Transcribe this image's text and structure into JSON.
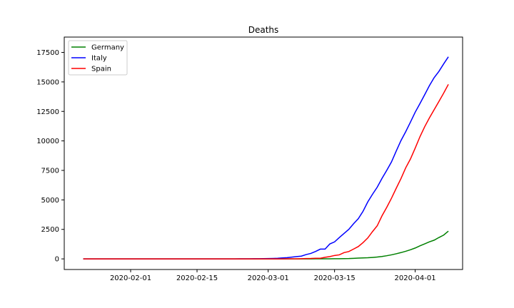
{
  "chart_data": {
    "type": "line",
    "title": "Deaths",
    "xlabel": "",
    "ylabel": "",
    "x_type": "date",
    "x": [
      "2020-01-22",
      "2020-01-23",
      "2020-01-24",
      "2020-01-25",
      "2020-01-26",
      "2020-01-27",
      "2020-01-28",
      "2020-01-29",
      "2020-01-30",
      "2020-01-31",
      "2020-02-01",
      "2020-02-02",
      "2020-02-03",
      "2020-02-04",
      "2020-02-05",
      "2020-02-06",
      "2020-02-07",
      "2020-02-08",
      "2020-02-09",
      "2020-02-10",
      "2020-02-11",
      "2020-02-12",
      "2020-02-13",
      "2020-02-14",
      "2020-02-15",
      "2020-02-16",
      "2020-02-17",
      "2020-02-18",
      "2020-02-19",
      "2020-02-20",
      "2020-02-21",
      "2020-02-22",
      "2020-02-23",
      "2020-02-24",
      "2020-02-25",
      "2020-02-26",
      "2020-02-27",
      "2020-02-28",
      "2020-02-29",
      "2020-03-01",
      "2020-03-02",
      "2020-03-03",
      "2020-03-04",
      "2020-03-05",
      "2020-03-06",
      "2020-03-07",
      "2020-03-08",
      "2020-03-09",
      "2020-03-10",
      "2020-03-11",
      "2020-03-12",
      "2020-03-13",
      "2020-03-14",
      "2020-03-15",
      "2020-03-16",
      "2020-03-17",
      "2020-03-18",
      "2020-03-19",
      "2020-03-20",
      "2020-03-21",
      "2020-03-22",
      "2020-03-23",
      "2020-03-24",
      "2020-03-25",
      "2020-03-26",
      "2020-03-27",
      "2020-03-28",
      "2020-03-29",
      "2020-03-30",
      "2020-03-31",
      "2020-04-01",
      "2020-04-02",
      "2020-04-03",
      "2020-04-04",
      "2020-04-05",
      "2020-04-06",
      "2020-04-07",
      "2020-04-08"
    ],
    "series": [
      {
        "name": "Germany",
        "color": "#008000",
        "values": [
          0,
          0,
          0,
          0,
          0,
          0,
          0,
          0,
          0,
          0,
          0,
          0,
          0,
          0,
          0,
          0,
          0,
          0,
          0,
          0,
          0,
          0,
          0,
          0,
          0,
          0,
          0,
          0,
          0,
          0,
          0,
          0,
          0,
          0,
          0,
          0,
          0,
          0,
          0,
          0,
          0,
          0,
          0,
          0,
          0,
          0,
          0,
          0,
          2,
          3,
          3,
          7,
          9,
          11,
          17,
          24,
          28,
          44,
          67,
          84,
          94,
          123,
          157,
          206,
          267,
          342,
          433,
          533,
          645,
          775,
          920,
          1107,
          1275,
          1444,
          1584,
          1810,
          2016,
          2349
        ]
      },
      {
        "name": "Italy",
        "color": "#0000ff",
        "values": [
          0,
          0,
          0,
          0,
          0,
          0,
          0,
          0,
          0,
          0,
          0,
          0,
          0,
          0,
          0,
          0,
          0,
          0,
          0,
          0,
          0,
          0,
          0,
          0,
          0,
          0,
          0,
          0,
          0,
          0,
          0,
          1,
          2,
          3,
          7,
          10,
          12,
          17,
          21,
          29,
          34,
          52,
          79,
          107,
          148,
          197,
          233,
          366,
          463,
          631,
          827,
          827,
          1266,
          1441,
          1809,
          2158,
          2503,
          2978,
          3405,
          4032,
          4825,
          5476,
          6077,
          6820,
          7503,
          8215,
          9134,
          10023,
          10779,
          11591,
          12428,
          13155,
          13915,
          14681,
          15362,
          15887,
          16523,
          17127
        ]
      },
      {
        "name": "Spain",
        "color": "#ff0000",
        "values": [
          0,
          0,
          0,
          0,
          0,
          0,
          0,
          0,
          0,
          0,
          0,
          0,
          0,
          0,
          0,
          0,
          0,
          0,
          0,
          0,
          0,
          0,
          0,
          0,
          0,
          0,
          0,
          0,
          0,
          0,
          0,
          0,
          0,
          0,
          0,
          0,
          0,
          0,
          0,
          0,
          0,
          1,
          2,
          3,
          5,
          10,
          17,
          28,
          35,
          54,
          55,
          133,
          195,
          289,
          342,
          533,
          623,
          830,
          1043,
          1375,
          1772,
          2311,
          2808,
          3647,
          4365,
          5138,
          5982,
          6803,
          7716,
          8464,
          9387,
          10348,
          11198,
          11947,
          12641,
          13341,
          14045,
          14792
        ]
      }
    ],
    "xticks": [
      "2020-02-01",
      "2020-02-15",
      "2020-03-01",
      "2020-03-15",
      "2020-04-01"
    ],
    "yticks": [
      0,
      2500,
      5000,
      7500,
      10000,
      12500,
      15000,
      17500
    ],
    "ylim": [
      -900,
      18800
    ],
    "xlim": [
      "2020-01-18",
      "2020-04-11"
    ],
    "grid": false,
    "legend_position": "top-left"
  }
}
